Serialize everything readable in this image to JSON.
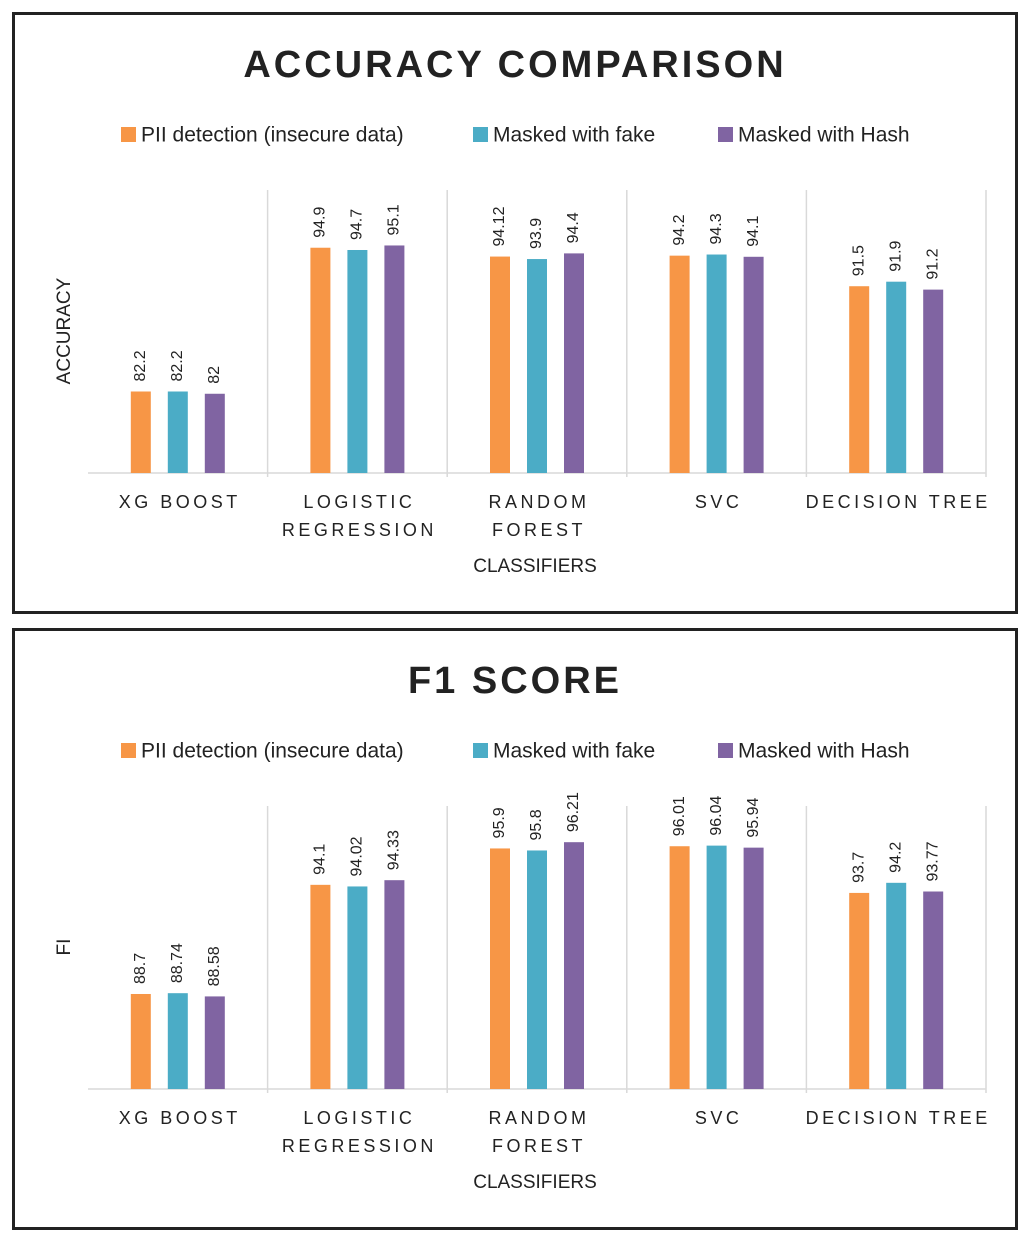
{
  "chart_data": [
    {
      "type": "bar",
      "title": "ACCURACY COMPARISON",
      "x_label": "CLASSIFIERS",
      "y_label": "ACCURACY",
      "categories": [
        "XG BOOST",
        "LOGISTIC\nREGRESSION",
        "RANDOM\nFOREST",
        "SVC",
        "DECISION TREE"
      ],
      "series": [
        {
          "name": "PII detection (insecure data)",
          "color": "#f79646",
          "values": [
            82.2,
            94.9,
            94.12,
            94.2,
            91.5
          ]
        },
        {
          "name": "Masked with fake",
          "color": "#4bacc6",
          "values": [
            82.2,
            94.7,
            93.9,
            94.3,
            91.9
          ]
        },
        {
          "name": "Masked with Hash",
          "color": "#8064a2",
          "values": [
            82,
            95.1,
            94.4,
            94.1,
            91.2
          ]
        }
      ],
      "ylim": [
        75,
        100
      ],
      "legend": "top"
    },
    {
      "type": "bar",
      "title": "F1 SCORE",
      "x_label": "CLASSIFIERS",
      "y_label": "FI",
      "categories": [
        "XG BOOST",
        "LOGISTIC\nREGRESSION",
        "RANDOM\nFOREST",
        "SVC",
        "DECISION TREE"
      ],
      "series": [
        {
          "name": "PII detection (insecure data)",
          "color": "#f79646",
          "values": [
            88.7,
            94.1,
            95.9,
            96.01,
            93.7
          ]
        },
        {
          "name": "Masked with fake",
          "color": "#4bacc6",
          "values": [
            88.74,
            94.02,
            95.8,
            96.04,
            94.2
          ]
        },
        {
          "name": "Masked with Hash",
          "color": "#8064a2",
          "values": [
            88.58,
            94.33,
            96.21,
            95.94,
            93.77
          ]
        }
      ],
      "ylim": [
        84,
        98
      ],
      "legend": "top"
    }
  ]
}
